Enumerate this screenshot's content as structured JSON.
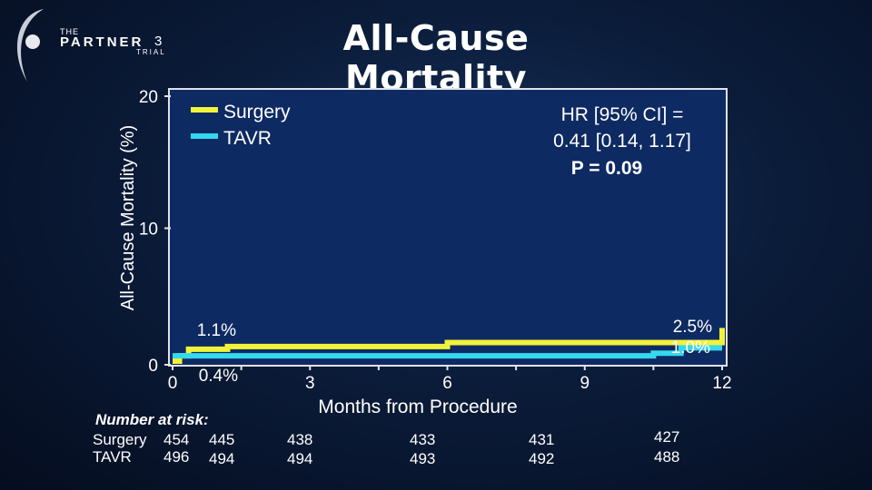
{
  "header": {
    "title": "All-Cause Mortality",
    "logo": {
      "the": "THE",
      "partner": "PARTNER",
      "three": "3",
      "trial": "TRIAL"
    }
  },
  "chart_data": {
    "type": "line",
    "ylabel": "All-Cause Mortality (%)",
    "xlabel": "Months from Procedure",
    "xlim": [
      0,
      12
    ],
    "ylim": [
      0,
      20
    ],
    "xticks": [
      0,
      3,
      6,
      9,
      12
    ],
    "yticks": [
      0,
      10,
      20
    ],
    "legend": {
      "position": "top-left"
    },
    "series": [
      {
        "name": "Surgery",
        "color": "#f2f23a",
        "x": [
          0,
          0.15,
          0.15,
          0.35,
          0.35,
          1.2,
          1.2,
          6.0,
          6.0,
          12.0,
          12.0
        ],
        "y": [
          0,
          0,
          0.4,
          0.4,
          0.9,
          0.9,
          1.1,
          1.1,
          1.4,
          1.4,
          2.5
        ],
        "labels": [
          {
            "x": 1.1,
            "y": 1.1,
            "text": "1.1%"
          },
          {
            "x": 12,
            "y": 2.5,
            "text": "2.5%"
          }
        ]
      },
      {
        "name": "TAVR",
        "color": "#36d8ee",
        "x": [
          0,
          10.5,
          10.5,
          11.1,
          11.1,
          12.0
        ],
        "y": [
          0.4,
          0.4,
          0.6,
          0.6,
          1.0,
          1.0
        ],
        "labels": [
          {
            "x": 1.1,
            "y": 0.4,
            "text": "0.4%"
          },
          {
            "x": 12,
            "y": 1.0,
            "text": "1.0%"
          }
        ]
      }
    ],
    "annotation": {
      "line1": "HR [95% CI] =",
      "line2": "0.41 [0.14, 1.17]",
      "line3": "P = 0.09"
    }
  },
  "risk_table": {
    "title": "Number at risk:",
    "rows": [
      {
        "label": "Surgery",
        "values": [
          "454",
          "445",
          "438",
          "433",
          "431",
          "427"
        ]
      },
      {
        "label": "TAVR",
        "values": [
          "496",
          "494",
          "494",
          "493",
          "492",
          "488"
        ]
      }
    ]
  }
}
